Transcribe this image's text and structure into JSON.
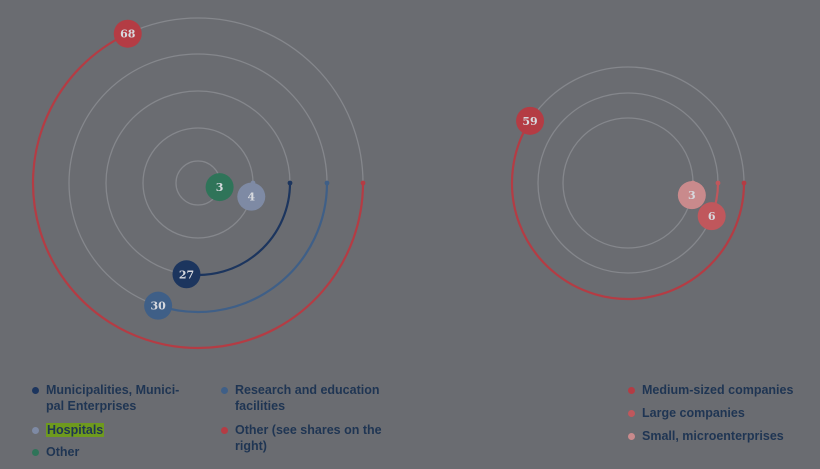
{
  "colors": {
    "background": "#6a6c71",
    "ring": "#85878c",
    "municipalities": "#1c355e",
    "research": "#3f5f87",
    "hospitals": "#7e8aa4",
    "other_green": "#2f7459",
    "other_red": "#b43c44",
    "medium": "#b43c44",
    "large": "#c0575c",
    "small": "#c98a8c",
    "highlight": "#6e9a1e"
  },
  "chart_data": [
    {
      "type": "radial-bar",
      "unit": "percent",
      "series": [
        {
          "name": "Other (see shares on the right)",
          "value": 68,
          "label": "68",
          "color_key": "other_red"
        },
        {
          "name": "Research and education facilities",
          "value": 30,
          "label": "30",
          "color_key": "research"
        },
        {
          "name": "Municipalities, Municipal Enterprises",
          "value": 27,
          "label": "27",
          "color_key": "municipalities"
        },
        {
          "name": "Hospitals",
          "value": 4,
          "label": "4",
          "color_key": "hospitals"
        },
        {
          "name": "Other",
          "value": 3,
          "label": "3",
          "color_key": "other_green"
        }
      ]
    },
    {
      "type": "radial-bar",
      "unit": "percent",
      "series": [
        {
          "name": "Medium-sized companies",
          "value": 59,
          "label": "59",
          "color_key": "medium"
        },
        {
          "name": "Large companies",
          "value": 6,
          "label": "6",
          "color_key": "large"
        },
        {
          "name": "Small, microenterprises",
          "value": 3,
          "label": "3",
          "color_key": "small"
        }
      ]
    }
  ],
  "legend_left_col1": [
    {
      "text": "Municipalities, Munici-\npal Enterprises",
      "color": "#1c355e"
    },
    {
      "text": "Hospitals",
      "color": "#7e8aa4",
      "highlight": true
    },
    {
      "text": "Other",
      "color": "#2f7459"
    }
  ],
  "legend_left_col2": [
    {
      "text": "Research and education facilities",
      "color": "#3f5f87"
    },
    {
      "text": "Other (see shares on the right)",
      "color": "#b43c44"
    }
  ],
  "legend_right": [
    {
      "text": "Medium-sized companies",
      "color": "#b43c44"
    },
    {
      "text": "Large companies",
      "color": "#c0575c"
    },
    {
      "text": "Small, microenterprises",
      "color": "#c98a8c"
    }
  ]
}
